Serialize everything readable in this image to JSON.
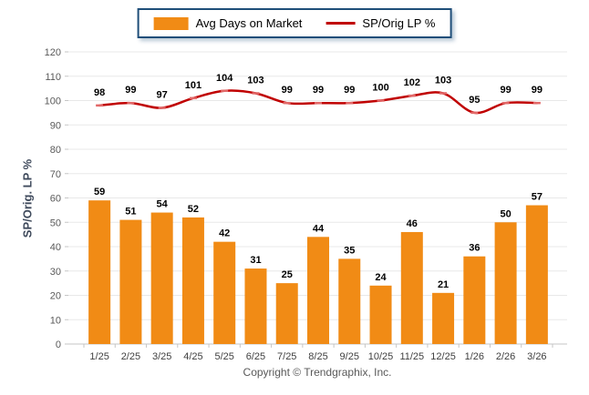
{
  "legend": {
    "bar_label": "Avg Days on Market",
    "line_label": "SP/Orig LP %"
  },
  "y_axis_title": "SP/Orig. LP %",
  "footer": "Copyright © Trendgraphix, Inc.",
  "colors": {
    "bar": "#F18B15",
    "line": "#C00000",
    "line_marker": "#E26868",
    "grid": "#E8E8E8",
    "axis": "#C6C6C6",
    "y_tick_label": "#595959",
    "x_tick_label": "#404040",
    "data_label": "#000000"
  },
  "chart_data": {
    "type": "bar+line",
    "categories": [
      "1/25",
      "2/25",
      "3/25",
      "4/25",
      "5/25",
      "6/25",
      "7/25",
      "8/25",
      "9/25",
      "10/25",
      "11/25",
      "12/25",
      "1/26",
      "2/26",
      "3/26"
    ],
    "series": [
      {
        "name": "Avg Days on Market",
        "type": "bar",
        "values": [
          59,
          51,
          54,
          52,
          42,
          31,
          25,
          44,
          35,
          24,
          46,
          21,
          36,
          50,
          57
        ]
      },
      {
        "name": "SP/Orig LP %",
        "type": "line",
        "values": [
          98,
          99,
          97,
          101,
          104,
          103,
          99,
          99,
          99,
          100,
          102,
          103,
          95,
          99,
          99
        ]
      }
    ],
    "title": "",
    "xlabel": "",
    "ylabel": "SP/Orig. LP %",
    "ylim": [
      0,
      120
    ],
    "ytick_step": 10,
    "grid": true,
    "legend_position": "top"
  }
}
